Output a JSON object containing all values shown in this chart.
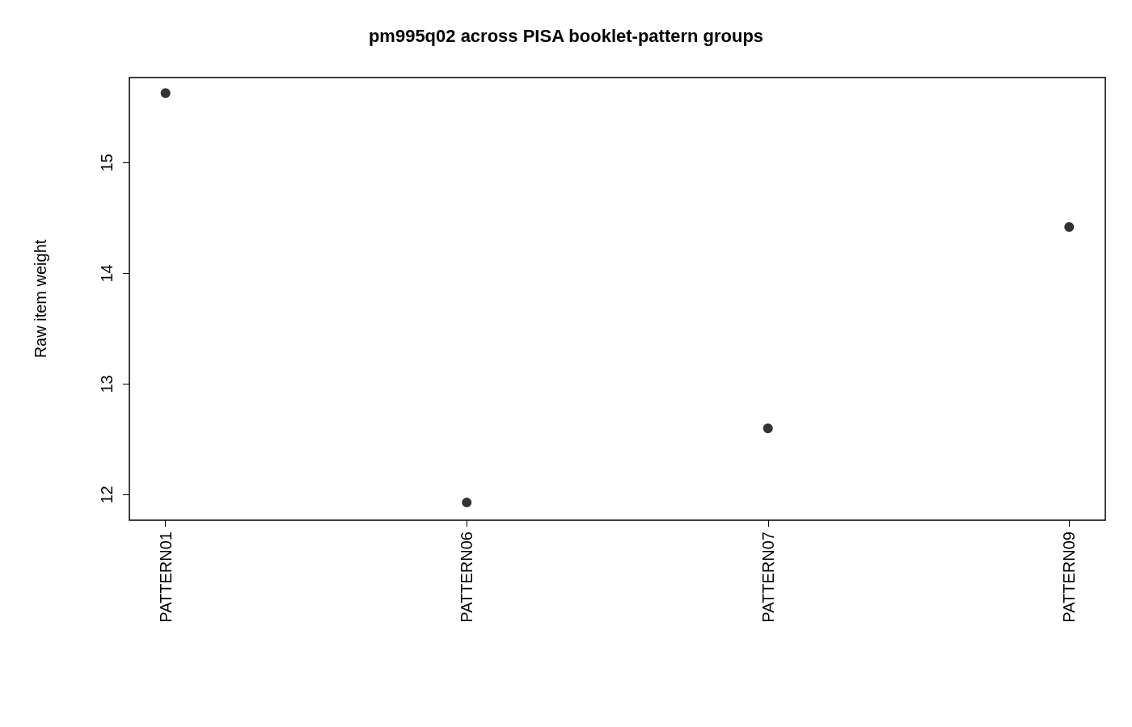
{
  "chart_data": {
    "type": "scatter",
    "title": "pm995q02 across PISA booklet-pattern groups",
    "ylabel": "Raw item weight",
    "categories": [
      "PATTERN01",
      "PATTERN06",
      "PATTERN07",
      "PATTERN09"
    ],
    "series": [
      {
        "color": "#000000",
        "values": [
          15.63,
          11.93,
          12.6,
          14.42
        ]
      }
    ],
    "ylim": [
      11.77,
      15.77
    ],
    "yticks": [
      12,
      13,
      14,
      15
    ],
    "grid": false,
    "marker": "circle"
  }
}
